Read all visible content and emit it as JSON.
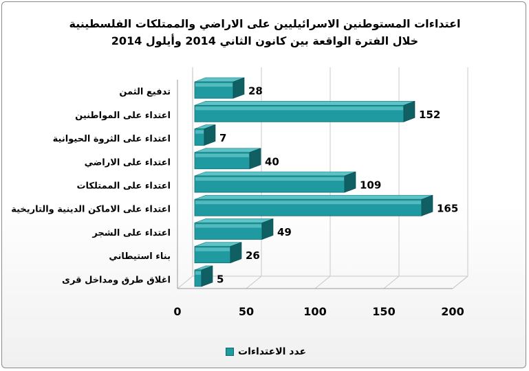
{
  "chart_data": {
    "type": "bar",
    "orientation": "horizontal",
    "title": "اعتداءات المستوطنين الاسرائيليين على الاراضي والممتلكات الفلسطينية خلال الفترة الواقعة بين كانون الثاني 2014 وأيلول 2014",
    "categories": [
      "تدفيع الثمن",
      "اعتداء على المواطنين",
      "اعتداء على الثروة الحيوانية",
      "اعتداء على الاراضي",
      "اعتداء على الممتلكات",
      "اعتداء على الاماكن الدينية والتاريخية",
      "اعتداء على الشجر",
      "بناء استيطاني",
      "اغلاق طرق ومداخل قرى"
    ],
    "series": [
      {
        "name": "عدد الاعتداءات",
        "values": [
          28,
          152,
          7,
          40,
          109,
          165,
          49,
          26,
          5
        ]
      }
    ],
    "xlim": [
      0,
      200
    ],
    "xticks": [
      "0",
      "50",
      "100",
      "150",
      "200"
    ],
    "grid": true,
    "legend_position": "bottom",
    "bar_color": "#1e9aa0",
    "data_labels": true
  }
}
